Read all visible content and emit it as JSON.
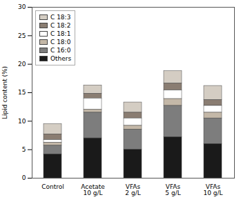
{
  "chart_data": {
    "type": "bar",
    "stacked": true,
    "categories": [
      "Control",
      "Acetate\n10 g/L",
      "VFAs\n2 g/L",
      "VFAs\n5 g/L",
      "VFAs\n10 g/L"
    ],
    "series": [
      {
        "name": "C 18:3",
        "color": "#d4cdc3",
        "values": [
          1.8,
          1.5,
          1.8,
          2.2,
          2.5
        ]
      },
      {
        "name": "C 18:2",
        "color": "#8a7d72",
        "values": [
          1.0,
          0.8,
          1.0,
          1.2,
          1.0
        ]
      },
      {
        "name": "C 18:1",
        "color": "#ffffff",
        "values": [
          0.5,
          2.0,
          1.3,
          1.5,
          1.2
        ]
      },
      {
        "name": "C 18:0",
        "color": "#c4b8a8",
        "values": [
          0.5,
          0.5,
          0.7,
          1.2,
          1.0
        ]
      },
      {
        "name": "C 16:0",
        "color": "#7d7d7d",
        "values": [
          1.5,
          4.5,
          3.5,
          5.5,
          4.5
        ]
      },
      {
        "name": "Others",
        "color": "#1a1a1a",
        "values": [
          4.2,
          7.0,
          5.0,
          7.2,
          6.0
        ]
      }
    ],
    "ylabel": "Lipid content (%)",
    "ylim": [
      0,
      30
    ],
    "yticks": [
      0,
      5,
      10,
      15,
      20,
      25,
      30
    ],
    "grid": false,
    "legend": "upper left"
  }
}
